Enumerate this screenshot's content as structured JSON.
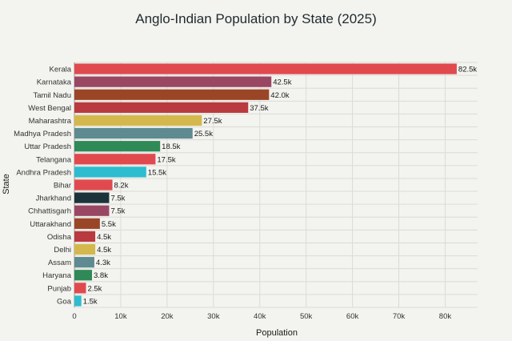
{
  "chart_data": {
    "type": "bar",
    "orientation": "horizontal",
    "title": "Anglo-Indian Population by State (2025)",
    "xlabel": "Population",
    "ylabel": "State",
    "xlim": [
      0,
      87000
    ],
    "x_ticks": [
      0,
      10000,
      20000,
      30000,
      40000,
      50000,
      60000,
      70000,
      80000
    ],
    "x_tick_labels": [
      "0",
      "10k",
      "20k",
      "30k",
      "40k",
      "50k",
      "60k",
      "70k",
      "80k"
    ],
    "grid": true,
    "categories": [
      "Kerala",
      "Karnataka",
      "Tamil Nadu",
      "West Bengal",
      "Maharashtra",
      "Madhya Pradesh",
      "Uttar Pradesh",
      "Telangana",
      "Andhra Pradesh",
      "Bihar",
      "Jharkhand",
      "Chhattisgarh",
      "Uttarakhand",
      "Odisha",
      "Delhi",
      "Assam",
      "Haryana",
      "Punjab",
      "Goa"
    ],
    "values": [
      82500,
      42500,
      42000,
      37500,
      27500,
      25500,
      18500,
      17500,
      15500,
      8200,
      7500,
      7500,
      5500,
      4500,
      4500,
      4300,
      3800,
      2500,
      1500
    ],
    "data_labels": [
      "82.5k",
      "42.5k",
      "42.0k",
      "37.5k",
      "27.5k",
      "25.5k",
      "18.5k",
      "17.5k",
      "15.5k",
      "8.2k",
      "7.5k",
      "7.5k",
      "5.5k",
      "4.5k",
      "4.5k",
      "4.3k",
      "3.8k",
      "2.5k",
      "1.5k"
    ],
    "colors": [
      "#e04a4f",
      "#9a4763",
      "#9b4527",
      "#b93a3f",
      "#d4b84e",
      "#5e8a91",
      "#2f8a57",
      "#e04a4f",
      "#2dbcd0",
      "#e04a4f",
      "#1c333b",
      "#9a4763",
      "#9b4527",
      "#b93a3f",
      "#d4b84e",
      "#5e8a91",
      "#2f8a57",
      "#e04a4f",
      "#2dbcd0"
    ]
  }
}
